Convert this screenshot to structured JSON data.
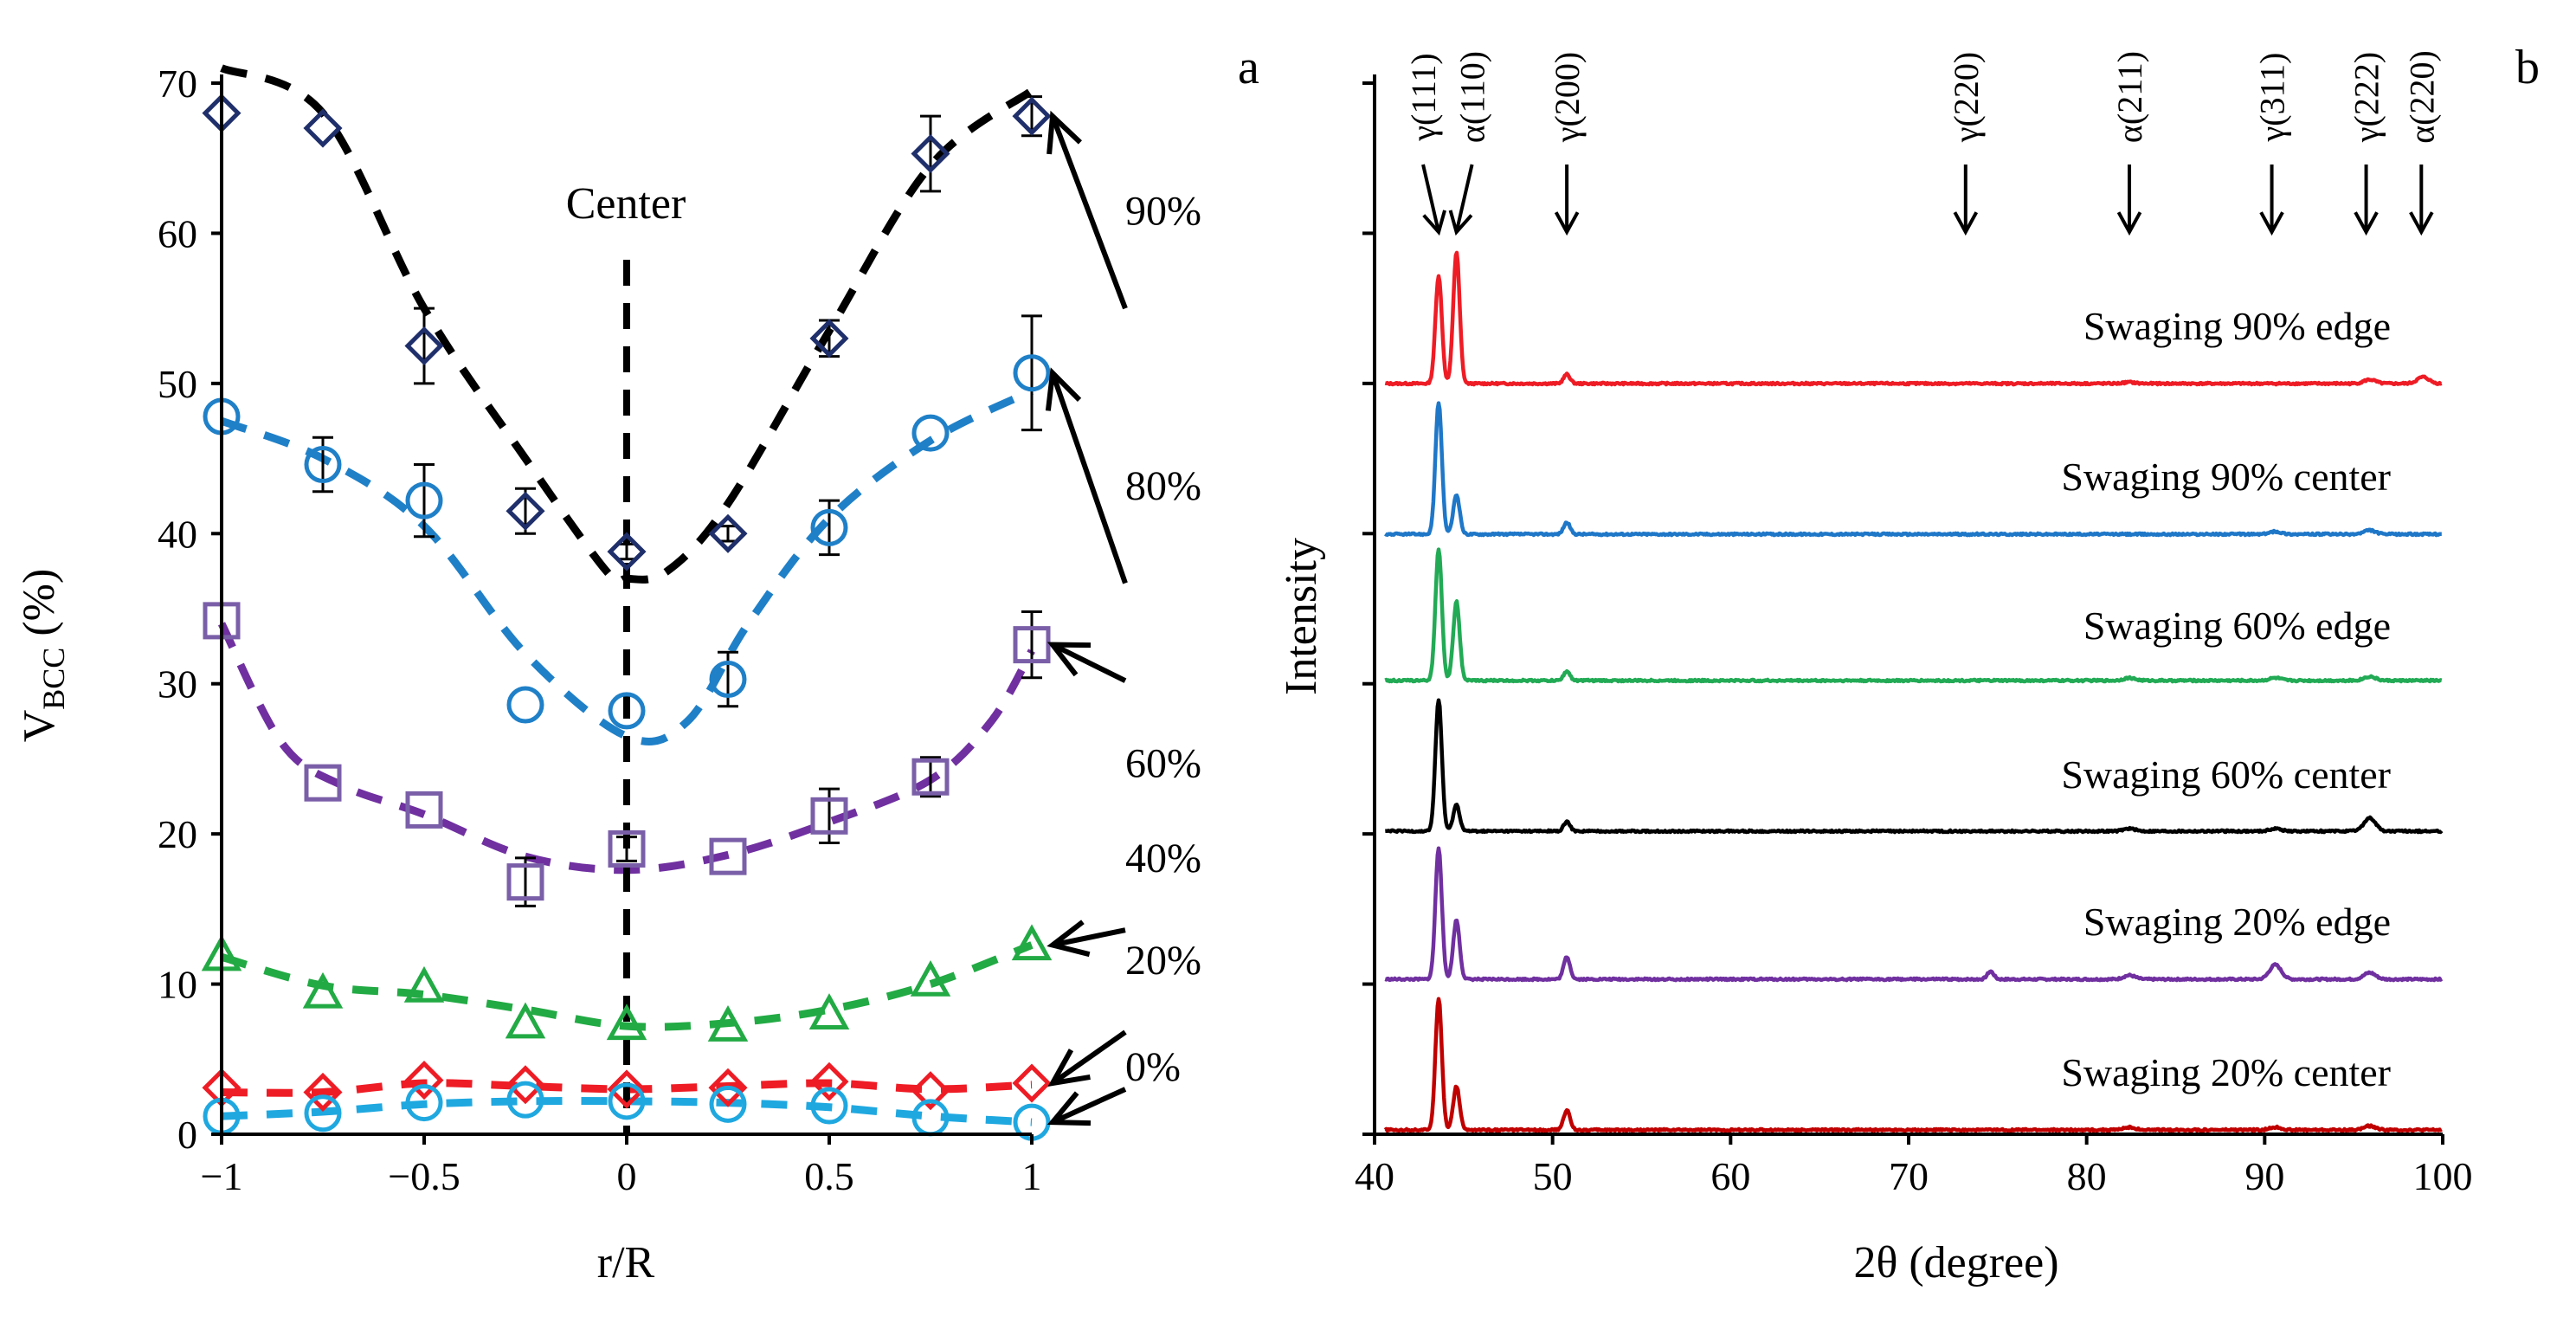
{
  "chart_data": [
    {
      "type": "scatter",
      "panel": "a",
      "xlabel": "r/R",
      "ylabel_main": "V",
      "ylabel_sub": "BCC",
      "ylabel_tail": " (%)",
      "xlim": [
        -1,
        1
      ],
      "ylim": [
        0,
        70
      ],
      "xticks": [
        -1,
        -0.5,
        0,
        0.5,
        1
      ],
      "xtick_labels": [
        "−1",
        "−0.5",
        "0",
        "0.5",
        "1"
      ],
      "yticks": [
        0,
        10,
        20,
        30,
        40,
        50,
        60,
        70
      ],
      "ytick_labels": [
        "0",
        "10",
        "20",
        "30",
        "40",
        "50",
        "60",
        "70"
      ],
      "center_line": {
        "x": 0,
        "label": "Center"
      },
      "x": [
        -1,
        -0.75,
        -0.5,
        -0.25,
        0,
        0.25,
        0.5,
        0.75,
        1
      ],
      "series": [
        {
          "name": "90%",
          "marker": "diamond",
          "color": "#1f2f6b",
          "fit_color": "#000000",
          "values": [
            68,
            67,
            52.5,
            41.5,
            38.8,
            40,
            53,
            65.3,
            67.8
          ],
          "errors": [
            0,
            0,
            2.5,
            1.5,
            0.5,
            0.5,
            1.2,
            2.5,
            1.3
          ],
          "fit": [
            [
              -1,
              71
            ],
            [
              -0.75,
              68
            ],
            [
              -0.5,
              55
            ],
            [
              -0.25,
              45
            ],
            [
              -0.05,
              37.5
            ],
            [
              0,
              37
            ],
            [
              0.1,
              37.5
            ],
            [
              0.25,
              42
            ],
            [
              0.5,
              53.5
            ],
            [
              0.75,
              64.5
            ],
            [
              1,
              69.5
            ]
          ]
        },
        {
          "name": "80%",
          "marker": "circle",
          "color": "#1f80c8",
          "fit_color": "#1f80c8",
          "values": [
            47.8,
            44.6,
            42.2,
            28.6,
            28.2,
            30.3,
            40.4,
            46.7,
            50.7
          ],
          "errors": [
            0,
            1.8,
            2.4,
            0,
            0,
            1.8,
            1.8,
            0,
            3.8
          ],
          "fit": [
            [
              -1,
              47.5
            ],
            [
              -0.75,
              45
            ],
            [
              -0.5,
              40.5
            ],
            [
              -0.25,
              32
            ],
            [
              0,
              26.5
            ],
            [
              0.15,
              27.5
            ],
            [
              0.3,
              34
            ],
            [
              0.5,
              41
            ],
            [
              0.75,
              46.2
            ],
            [
              1,
              49.5
            ]
          ]
        },
        {
          "name": "60%",
          "marker": "square",
          "color": "#7a5fa8",
          "fit_color": "#7030a0",
          "values": [
            34.2,
            23.4,
            21.6,
            16.8,
            19,
            18.5,
            21.2,
            23.8,
            32.6
          ],
          "errors": [
            0,
            0,
            0,
            1.6,
            0.8,
            0,
            1.8,
            1.3,
            2.2
          ],
          "fit": [
            [
              -1,
              34
            ],
            [
              -0.85,
              26
            ],
            [
              -0.7,
              23.2
            ],
            [
              -0.5,
              21.3
            ],
            [
              -0.25,
              18.5
            ],
            [
              0,
              17.6
            ],
            [
              0.25,
              18.6
            ],
            [
              0.5,
              20.8
            ],
            [
              0.75,
              23.6
            ],
            [
              0.9,
              27.5
            ],
            [
              1,
              32.2
            ]
          ]
        },
        {
          "name": "40%",
          "marker": "triangle",
          "color": "#22aa44",
          "fit_color": "#22aa44",
          "values": [
            11.9,
            9.4,
            9.8,
            7.4,
            7.3,
            7.2,
            8,
            10.2,
            12.6
          ],
          "errors": [
            0,
            0,
            0,
            0,
            0,
            0,
            0,
            0,
            0
          ],
          "fit": [
            [
              -1,
              11.8
            ],
            [
              -0.75,
              9.9
            ],
            [
              -0.5,
              9.3
            ],
            [
              -0.25,
              8.3
            ],
            [
              0,
              7.2
            ],
            [
              0.25,
              7.4
            ],
            [
              0.5,
              8.3
            ],
            [
              0.75,
              10
            ],
            [
              1,
              12.6
            ]
          ]
        },
        {
          "name": "20%",
          "marker": "diamond",
          "color": "#ee1c25",
          "fit_color": "#ee1c25",
          "values": [
            3.1,
            2.8,
            3.6,
            3.3,
            3,
            3.1,
            3.5,
            2.9,
            3.4
          ],
          "errors": [
            0,
            0,
            0,
            0,
            0,
            0,
            0,
            0,
            0
          ],
          "fit": [
            [
              -1,
              2.8
            ],
            [
              -0.75,
              2.8
            ],
            [
              -0.5,
              3.4
            ],
            [
              -0.25,
              3.2
            ],
            [
              0,
              3
            ],
            [
              0.25,
              3.2
            ],
            [
              0.5,
              3.4
            ],
            [
              0.75,
              3
            ],
            [
              1,
              3.3
            ]
          ]
        },
        {
          "name": "0%",
          "marker": "circle",
          "color": "#1fa8e0",
          "fit_color": "#1fa8e0",
          "values": [
            1.2,
            1.4,
            2.1,
            2.3,
            2.2,
            2,
            1.9,
            1.1,
            0.8
          ],
          "errors": [
            0,
            0,
            0,
            0,
            0,
            0,
            0,
            0,
            0
          ],
          "fit": [
            [
              -1,
              1.2
            ],
            [
              -0.75,
              1.5
            ],
            [
              -0.5,
              2
            ],
            [
              -0.25,
              2.2
            ],
            [
              0,
              2.2
            ],
            [
              0.25,
              2.1
            ],
            [
              0.5,
              1.8
            ],
            [
              0.75,
              1.2
            ],
            [
              1,
              0.8
            ]
          ]
        }
      ],
      "percent_labels": [
        {
          "text": "90%",
          "y": 61.5
        },
        {
          "text": "80%",
          "y": 43.2
        },
        {
          "text": "60%",
          "y": 24.7
        },
        {
          "text": "40%",
          "y": 18.4
        },
        {
          "text": "20%",
          "y": 11.6
        },
        {
          "text": "0%",
          "y": 4.5
        }
      ]
    },
    {
      "type": "line",
      "panel": "b",
      "xlabel": "2θ (degree)",
      "ylabel": "Intensity",
      "xlim": [
        40,
        100
      ],
      "xticks": [
        40,
        50,
        60,
        70,
        80,
        90,
        100
      ],
      "xtick_labels": [
        "40",
        "50",
        "60",
        "70",
        "80",
        "90",
        "100"
      ],
      "peak_markers": [
        {
          "label": "γ(111)",
          "x": 43.6
        },
        {
          "label": "α(110)",
          "x": 44.6
        },
        {
          "label": "γ(200)",
          "x": 50.8
        },
        {
          "label": "γ(220)",
          "x": 73.2
        },
        {
          "label": "α(211)",
          "x": 82.4
        },
        {
          "label": "γ(311)",
          "x": 90.4
        },
        {
          "label": "γ(222)",
          "x": 95.7
        },
        {
          "label": "α(220)",
          "x": 98.8
        }
      ],
      "series": [
        {
          "name": "Swaging 90% edge",
          "color": "#ee1c25",
          "peaks": [
            [
              43.6,
              0.82
            ],
            [
              44.6,
              1.0
            ],
            [
              50.8,
              0.07
            ],
            [
              82.4,
              0.01
            ],
            [
              95.9,
              0.03
            ],
            [
              98.9,
              0.05
            ]
          ]
        },
        {
          "name": "Swaging 90% center",
          "color": "#1f77c8",
          "peaks": [
            [
              43.6,
              1.0
            ],
            [
              44.6,
              0.3
            ],
            [
              50.8,
              0.09
            ],
            [
              90.6,
              0.02
            ],
            [
              95.9,
              0.03
            ]
          ]
        },
        {
          "name": "Swaging 60% edge",
          "color": "#22aa55",
          "peaks": [
            [
              43.6,
              1.0
            ],
            [
              44.6,
              0.6
            ],
            [
              50.8,
              0.07
            ],
            [
              82.4,
              0.02
            ],
            [
              90.6,
              0.02
            ],
            [
              95.9,
              0.03
            ]
          ]
        },
        {
          "name": "Swaging 60% center",
          "color": "#000000",
          "peaks": [
            [
              43.6,
              1.0
            ],
            [
              44.6,
              0.2
            ],
            [
              50.8,
              0.07
            ],
            [
              82.4,
              0.02
            ],
            [
              90.6,
              0.02
            ],
            [
              95.9,
              0.1
            ]
          ]
        },
        {
          "name": "Swaging 20% edge",
          "color": "#7030a0",
          "peaks": [
            [
              43.6,
              1.0
            ],
            [
              44.6,
              0.45
            ],
            [
              50.8,
              0.17
            ],
            [
              74.6,
              0.06
            ],
            [
              82.4,
              0.03
            ],
            [
              90.6,
              0.11
            ],
            [
              95.9,
              0.05
            ]
          ]
        },
        {
          "name": "Swaging 20% center",
          "color": "#c00000",
          "peaks": [
            [
              43.6,
              1.0
            ],
            [
              44.6,
              0.33
            ],
            [
              50.8,
              0.15
            ],
            [
              82.4,
              0.02
            ],
            [
              90.6,
              0.02
            ],
            [
              95.9,
              0.03
            ]
          ]
        }
      ]
    }
  ],
  "panels": {
    "a": "a",
    "b": "b"
  }
}
